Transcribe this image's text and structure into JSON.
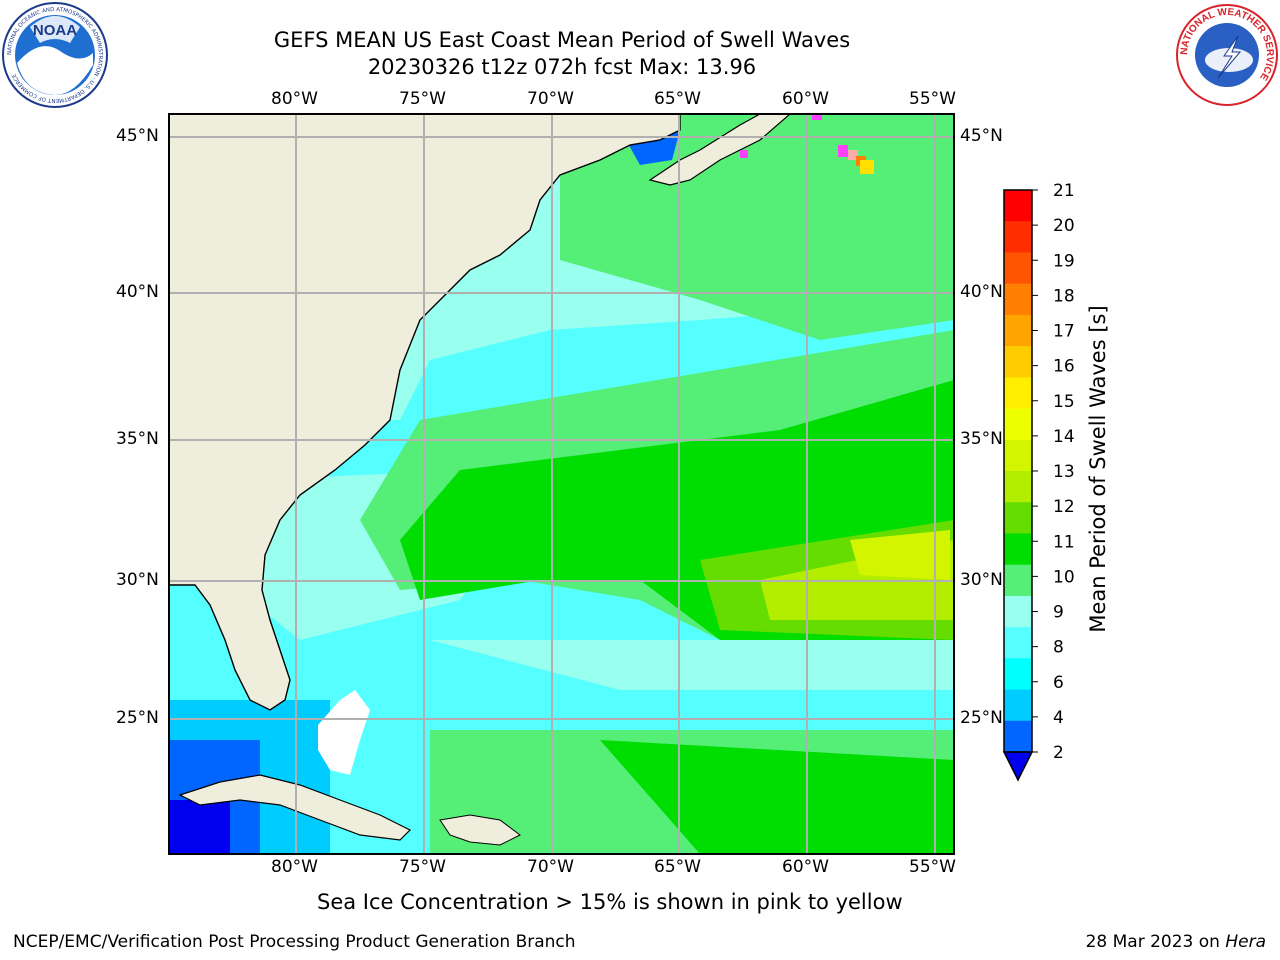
{
  "title": {
    "line1": "GEFS MEAN US East Coast Mean Period of Swell Waves",
    "line2": "20230326 t12z 072h fcst   Max: 13.96"
  },
  "logos": {
    "left": {
      "text": "NOAA",
      "ring_text": "NATIONAL OCEANIC AND ATMOSPHERIC ADMINISTRATION · U.S. DEPARTMENT OF COMMERCE",
      "icon": "noaa-logo"
    },
    "right": {
      "ring_text": "NATIONAL WEATHER SERVICE",
      "icon": "nws-logo"
    }
  },
  "map": {
    "projection": "lat-lon",
    "lon_range": [
      -85,
      -54.5
    ],
    "lat_range": [
      20.5,
      46
    ],
    "lon_ticks": [
      "80°W",
      "75°W",
      "70°W",
      "65°W",
      "60°W",
      "55°W"
    ],
    "lat_ticks": [
      "45°N",
      "40°N",
      "35°N",
      "30°N",
      "25°N"
    ],
    "land_color": "#efeedd",
    "grid": true,
    "grid_color": "#b0b0b0"
  },
  "colorbar": {
    "label": "Mean Period of Swell Waves [s]",
    "ticks": [
      "21",
      "20",
      "19",
      "18",
      "17",
      "16",
      "15",
      "14",
      "13",
      "12",
      "11",
      "10",
      "9",
      "8",
      "6",
      "4",
      "2"
    ],
    "colors_top_to_bottom": [
      "#ff0000",
      "#ff2d00",
      "#ff5500",
      "#ff7f00",
      "#ffa500",
      "#ffcc00",
      "#ffee00",
      "#eeff00",
      "#d4f500",
      "#b3ee00",
      "#66dd00",
      "#00dd00",
      "#55ee77",
      "#99ffee",
      "#55ffff",
      "#00ffff",
      "#00ccff",
      "#0066ff"
    ],
    "under_color": "#0000ee"
  },
  "caption": "Sea Ice Concentration > 15% is shown in pink to yellow",
  "footer": {
    "left": "NCEP/EMC/Verification Post Processing Product Generation Branch",
    "right_date": "28 Mar 2023 on ",
    "right_host": "Hera"
  }
}
